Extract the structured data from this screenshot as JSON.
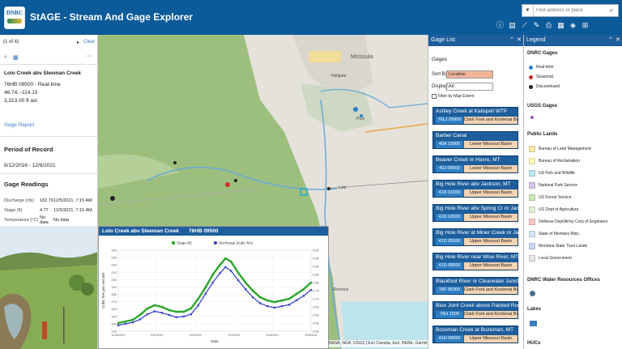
{
  "app": {
    "title": "StAGE - Stream And Gage Explorer",
    "logo_text": "DNRC"
  },
  "search": {
    "placeholder": "Find address or place"
  },
  "toolbar": {
    "icons": [
      "info-icon",
      "details-icon",
      "measure-icon",
      "draw-icon",
      "print-icon",
      "basemap-icon",
      "layers-icon",
      "grid-icon"
    ]
  },
  "popup": {
    "pager": "(1 of 4)",
    "next_glyph": "▸",
    "clear": "Clear",
    "more": "···",
    "site_name": "Lolo Creek abv Sleeman Creek",
    "site_id_status": "76HB 09500 - Real-time",
    "coords": "46.74, -114.15",
    "elevation": "3,313.00 ft asl",
    "gage_report": "Gage Report",
    "period_heading": "Period of Record",
    "period": "8/12/2016 - 12/6/2021",
    "readings_heading": "Gage Readings",
    "readings": [
      {
        "label": "Discharge (cfs)",
        "value": "182.70",
        "time": "12/5/2021, 7:15 AM"
      },
      {
        "label": "Stage (ft)",
        "value": "4.77",
        "time": "12/5/2021, 7:15 AM"
      },
      {
        "label": "Temperature (°C)",
        "value": "No data",
        "time": "No data"
      }
    ]
  },
  "map": {
    "labels": [
      "Missoula",
      "Lolo",
      "Hellgate",
      "Post",
      "Florence"
    ],
    "attribution": "NASA, NGA, USGS | Esri Canada, Esri, HERE, Garmin"
  },
  "hydrograph": {
    "title": "Lolo Creek abv Sleeman Creek",
    "gage_id": "76HB 09500",
    "chart_data": {
      "type": "line",
      "xlabel": "Date",
      "ylabel": "Cubic feet per second",
      "y2label": "",
      "ylim": [
        130,
        240
      ],
      "y2lim": [
        4.5,
        5.0
      ],
      "yticks": [
        130,
        140,
        150,
        160,
        170,
        180,
        190,
        200,
        210,
        220,
        230,
        240
      ],
      "y2ticks": [
        4.5,
        4.55,
        4.6,
        4.65,
        4.7,
        4.75,
        4.8,
        4.85,
        4.9,
        4.95,
        5.0
      ],
      "categories": [
        "11/30/2021",
        "12/1/2021",
        "12/2/2021",
        "12/3/2021",
        "12/4/2021",
        "12/5/2021"
      ],
      "legend_placement": "top",
      "series": [
        {
          "name": "Stage (ft)",
          "axis": "right",
          "color": "#2aa52a",
          "x": [
            0,
            0.2,
            0.4,
            0.6,
            0.8,
            1.0,
            1.2,
            1.4,
            1.6,
            1.8,
            2.0,
            2.2,
            2.4,
            2.6,
            2.8,
            2.95,
            3.1,
            3.3,
            3.5,
            3.7,
            3.9,
            4.1,
            4.3,
            4.5,
            4.7,
            4.9,
            5.1,
            5.3
          ],
          "values": [
            4.55,
            4.56,
            4.57,
            4.6,
            4.64,
            4.66,
            4.65,
            4.63,
            4.62,
            4.62,
            4.64,
            4.7,
            4.77,
            4.85,
            4.91,
            4.95,
            4.93,
            4.86,
            4.8,
            4.75,
            4.71,
            4.69,
            4.68,
            4.69,
            4.7,
            4.73,
            4.76,
            4.8
          ]
        },
        {
          "name": "Discharge (cubic ft/s)",
          "axis": "left",
          "color": "#3b48c8",
          "x": [
            0,
            0.2,
            0.4,
            0.6,
            0.8,
            1.0,
            1.2,
            1.4,
            1.6,
            1.8,
            2.0,
            2.2,
            2.4,
            2.6,
            2.8,
            2.95,
            3.1,
            3.3,
            3.5,
            3.7,
            3.9,
            4.1,
            4.3,
            4.5,
            4.7,
            4.9,
            5.1,
            5.3
          ],
          "values": [
            138,
            140,
            142,
            146,
            153,
            157,
            155,
            152,
            149,
            150,
            153,
            165,
            181,
            196,
            209,
            217,
            212,
            199,
            187,
            176,
            168,
            164,
            162,
            164,
            166,
            172,
            178,
            186
          ]
        }
      ]
    }
  },
  "gage_list": {
    "header": "Gage List",
    "section": "Gages",
    "sort_label": "Sort By:",
    "sort_value": "Location",
    "display_label": "Display:",
    "display_value": "All",
    "filter_label": "Filter by Map Extent",
    "cards": [
      {
        "name": "Ashley Creek at Kalispell WTP",
        "id": "76LJ 09900",
        "basin": "Clark Fork and Kootenai Bas"
      },
      {
        "name": "Barber Canal",
        "id": "40A 10000",
        "basin": "Lower Missouri Basin"
      },
      {
        "name": "Beaver Creek nr Havre, MT",
        "id": "40J 08900",
        "basin": "Lower Missouri Basin"
      },
      {
        "name": "Big Hole River abv Jackson, MT",
        "id": "41D 01000",
        "basin": "Upper Missouri Basin"
      },
      {
        "name": "Big Hole River abv Spring Cr nr Jackson,",
        "id": "41D 02000",
        "basin": "Upper Missouri Basin"
      },
      {
        "name": "Big Hole River at Miner Creek nr Jackso",
        "id": "41D 05000",
        "basin": "Upper Missouri Basin"
      },
      {
        "name": "Big Hole River near Wise River, MT",
        "id": "41D 08000",
        "basin": "Upper Missouri Basin"
      },
      {
        "name": "Blackfoot River nr Clearwater Junction,",
        "id": "76F 05300",
        "basin": "Clark Fork and Kootenai Bas"
      },
      {
        "name": "Blue Joint Creek above Painted Rocks R",
        "id": "76H 1500",
        "basin": "Clark Fork and Kootenai Bas"
      },
      {
        "name": "Bozeman Creek at Bozeman, MT",
        "id": "41H 08990",
        "basin": "Upper Missouri Basin"
      }
    ]
  },
  "legend": {
    "header": "Legend",
    "dnrc_gages": "DNRC Gages",
    "gage_items": [
      {
        "label": "Real-time",
        "color": "#2f7fc4"
      },
      {
        "label": "Seasonal",
        "color": "#c9302c"
      },
      {
        "label": "Discontinued",
        "color": "#222222"
      }
    ],
    "usgs_gages": "USGS Gages",
    "public_lands": "Public Lands",
    "land_items": [
      {
        "label": "Bureau of Land Management",
        "color": "#fde9a8"
      },
      {
        "label": "Bureau of Reclamation",
        "color": "#fff7b8"
      },
      {
        "label": "US Fish and Wildlife",
        "color": "#bfe7f0"
      },
      {
        "label": "National Park Service",
        "color": "#d8c3e8"
      },
      {
        "label": "US Forest Service",
        "color": "#c8e6b5"
      },
      {
        "label": "US Dept of Agriculture",
        "color": "#e2efd0"
      },
      {
        "label": "Defense Dept/Army Corp of Engineers",
        "color": "#f6c9c0"
      },
      {
        "label": "State of Montana Misc.",
        "color": "#d6e4f5"
      },
      {
        "label": "Montana State Trust Lands",
        "color": "#c9d8f0"
      },
      {
        "label": "Local Government",
        "color": "#e6e6e6"
      }
    ],
    "water_offices": "DNRC Water Resources Offices",
    "lakes": "Lakes",
    "hucs": "HUCs"
  }
}
